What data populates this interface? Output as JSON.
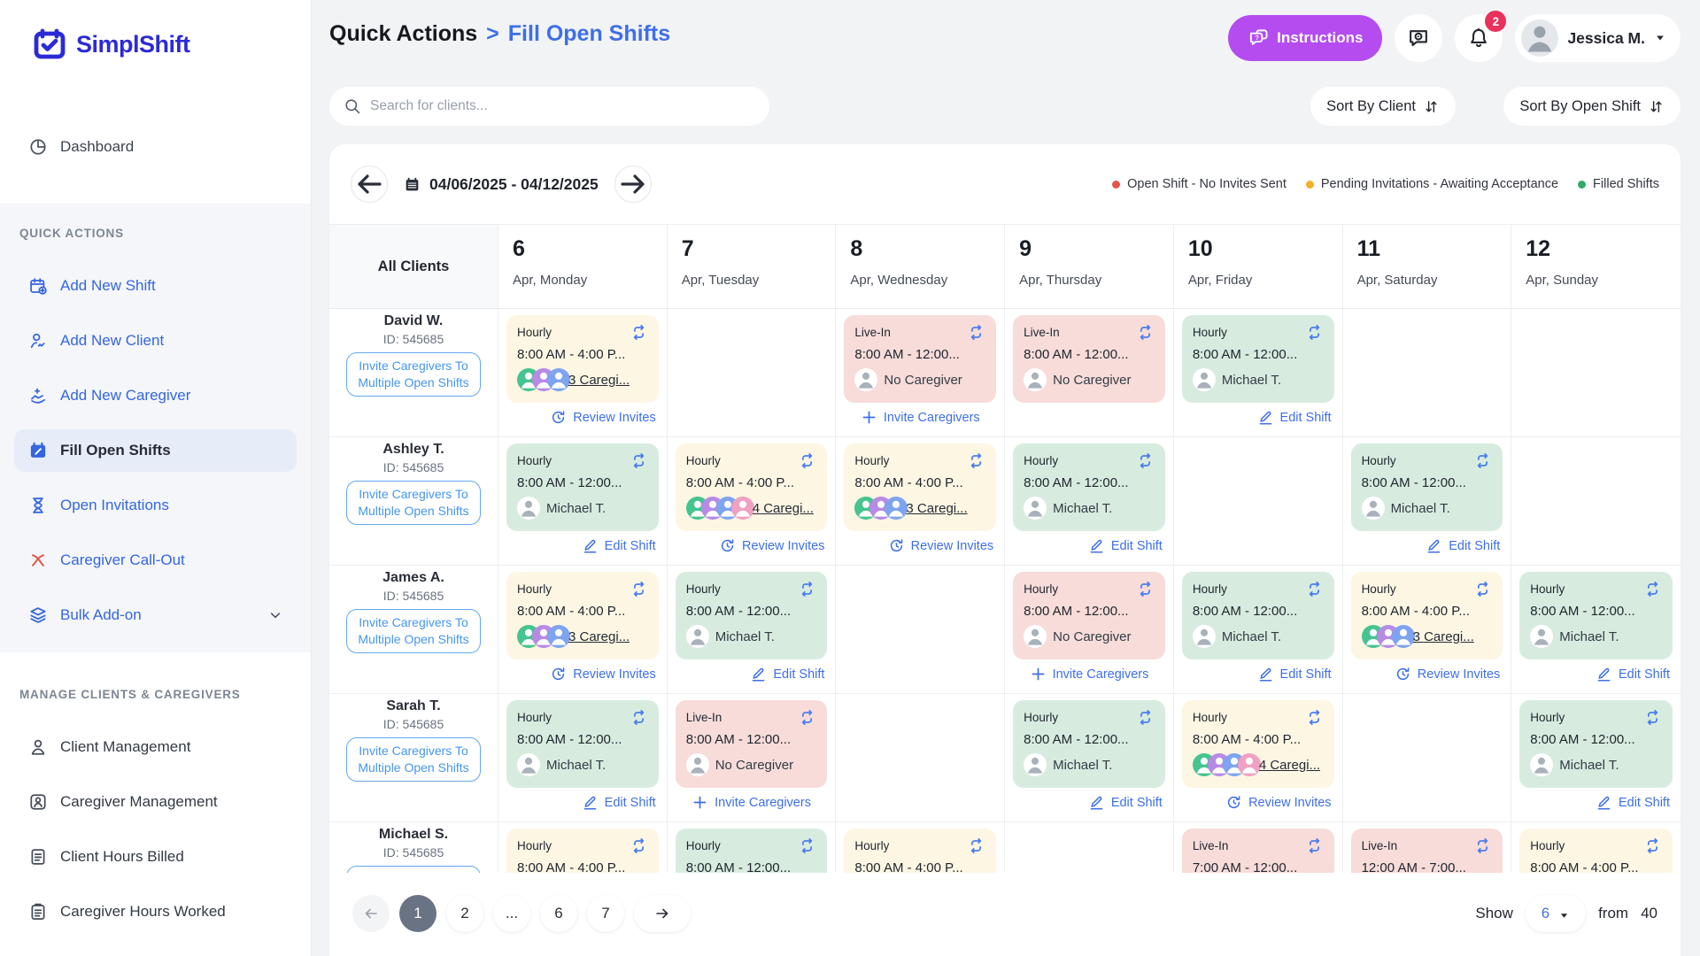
{
  "brand": {
    "name": "SimplShift"
  },
  "sidebar": {
    "dashboard": {
      "label": "Dashboard",
      "icon": "pie-chart-icon"
    },
    "quick_actions": {
      "title": "QUICK ACTIONS",
      "items": [
        {
          "label": "Add New Shift",
          "icon": "calendar-add-icon",
          "active": false
        },
        {
          "label": "Add New Client",
          "icon": "person-add-icon",
          "active": false
        },
        {
          "label": "Add New Caregiver",
          "icon": "hand-add-icon",
          "active": false
        },
        {
          "label": "Fill Open Shifts",
          "icon": "calendar-filled-icon",
          "active": true
        },
        {
          "label": "Open Invitations",
          "icon": "hourglass-icon",
          "active": false
        },
        {
          "label": "Caregiver Call-Out",
          "icon": "call-out-icon",
          "icon_color": "#e2574c",
          "active": false
        },
        {
          "label": "Bulk Add-on",
          "icon": "layers-icon",
          "chevron": true,
          "active": false
        }
      ]
    },
    "manage": {
      "title": "MANAGE CLIENTS & CAREGIVERS",
      "items": [
        {
          "label": "Client Management",
          "icon": "person-icon"
        },
        {
          "label": "Caregiver Management",
          "icon": "person-badge-icon"
        },
        {
          "label": "Client Hours Billed",
          "icon": "document-icon"
        },
        {
          "label": "Caregiver Hours Worked",
          "icon": "clipboard-icon"
        }
      ]
    }
  },
  "header": {
    "breadcrumb_parent": "Quick Actions",
    "breadcrumb_sep": ">",
    "breadcrumb_current": "Fill Open Shifts",
    "instructions_label": "Instructions",
    "notification_count": "2",
    "user_name": "Jessica M."
  },
  "toolbar": {
    "search_placeholder": "Search for clients...",
    "sort_by_client": "Sort By Client",
    "sort_by_open_shift": "Sort By Open Shift"
  },
  "week_bar": {
    "date_range": "04/06/2025 - 04/12/2025",
    "legend": [
      {
        "label": "Open Shift - No Invites Sent",
        "color": "#e2574c"
      },
      {
        "label": "Pending Invitations - Awaiting Acceptance",
        "color": "#f2b027"
      },
      {
        "label": "Filled Shifts",
        "color": "#2eab66"
      }
    ]
  },
  "calendar": {
    "corner_label": "All Clients",
    "days": [
      {
        "num": "6",
        "sub": "Apr, Monday"
      },
      {
        "num": "7",
        "sub": "Apr, Tuesday"
      },
      {
        "num": "8",
        "sub": "Apr, Wednesday"
      },
      {
        "num": "9",
        "sub": "Apr, Thursday"
      },
      {
        "num": "10",
        "sub": "Apr, Friday"
      },
      {
        "num": "11",
        "sub": "Apr, Saturday"
      },
      {
        "num": "12",
        "sub": "Apr, Sunday"
      }
    ],
    "actions": {
      "review": "Review Invites",
      "edit": "Edit Shift",
      "invite": "Invite Caregivers"
    },
    "invite_multiple_label": "Invite Caregivers To Multiple Open Shifts",
    "rows": [
      {
        "name": "David W.",
        "id": "ID: 545685",
        "cells": [
          {
            "status": "pending",
            "shift_type": "Hourly",
            "time": "8:00 AM - 4:00 P...",
            "caregiver": "3 Caregi...",
            "avatars": 3,
            "action": "review"
          },
          null,
          {
            "status": "open",
            "shift_type": "Live-In",
            "time": "8:00 AM - 12:00...",
            "caregiver": "No Caregiver",
            "avatars": 1,
            "action": "invite"
          },
          {
            "status": "open",
            "shift_type": "Live-In",
            "time": "8:00 AM - 12:00...",
            "caregiver": "No Caregiver",
            "avatars": 1,
            "action": null
          },
          {
            "status": "filled",
            "shift_type": "Hourly",
            "time": "8:00 AM - 12:00...",
            "caregiver": "Michael T.",
            "avatars": 1,
            "action": "edit"
          },
          null,
          null
        ]
      },
      {
        "name": "Ashley T.",
        "id": "ID: 545685",
        "cells": [
          {
            "status": "filled",
            "shift_type": "Hourly",
            "time": "8:00 AM - 12:00...",
            "caregiver": "Michael T.",
            "avatars": 1,
            "action": "edit"
          },
          {
            "status": "pending",
            "shift_type": "Hourly",
            "time": "8:00 AM - 4:00 P...",
            "caregiver": "4 Caregi...",
            "avatars": 4,
            "action": "review"
          },
          {
            "status": "pending",
            "shift_type": "Hourly",
            "time": "8:00 AM - 4:00 P...",
            "caregiver": "3 Caregi...",
            "avatars": 3,
            "action": "review"
          },
          {
            "status": "filled",
            "shift_type": "Hourly",
            "time": "8:00 AM - 12:00...",
            "caregiver": "Michael T.",
            "avatars": 1,
            "action": "edit"
          },
          null,
          {
            "status": "filled",
            "shift_type": "Hourly",
            "time": "8:00 AM - 12:00...",
            "caregiver": "Michael T.",
            "avatars": 1,
            "action": "edit"
          },
          null
        ]
      },
      {
        "name": "James A.",
        "id": "ID: 545685",
        "cells": [
          {
            "status": "pending",
            "shift_type": "Hourly",
            "time": "8:00 AM - 4:00 P...",
            "caregiver": "3 Caregi...",
            "avatars": 3,
            "action": "review"
          },
          {
            "status": "filled",
            "shift_type": "Hourly",
            "time": "8:00 AM - 12:00...",
            "caregiver": "Michael T.",
            "avatars": 1,
            "action": "edit"
          },
          null,
          {
            "status": "open",
            "shift_type": "Hourly",
            "time": "8:00 AM - 12:00...",
            "caregiver": "No Caregiver",
            "avatars": 1,
            "action": "invite"
          },
          {
            "status": "filled",
            "shift_type": "Hourly",
            "time": "8:00 AM - 12:00...",
            "caregiver": "Michael T.",
            "avatars": 1,
            "action": "edit"
          },
          {
            "status": "pending",
            "shift_type": "Hourly",
            "time": "8:00 AM - 4:00 P...",
            "caregiver": "3 Caregi...",
            "avatars": 3,
            "action": "review"
          },
          {
            "status": "filled",
            "shift_type": "Hourly",
            "time": "8:00 AM - 12:00...",
            "caregiver": "Michael T.",
            "avatars": 1,
            "action": "edit"
          }
        ]
      },
      {
        "name": "Sarah T.",
        "id": "ID: 545685",
        "cells": [
          {
            "status": "filled",
            "shift_type": "Hourly",
            "time": "8:00 AM - 12:00...",
            "caregiver": "Michael T.",
            "avatars": 1,
            "action": "edit"
          },
          {
            "status": "open",
            "shift_type": "Live-In",
            "time": "8:00 AM - 12:00...",
            "caregiver": "No Caregiver",
            "avatars": 1,
            "action": "invite"
          },
          null,
          {
            "status": "filled",
            "shift_type": "Hourly",
            "time": "8:00 AM - 12:00...",
            "caregiver": "Michael T.",
            "avatars": 1,
            "action": "edit"
          },
          {
            "status": "pending",
            "shift_type": "Hourly",
            "time": "8:00 AM - 4:00 P...",
            "caregiver": "4 Caregi...",
            "avatars": 4,
            "action": "review"
          },
          null,
          {
            "status": "filled",
            "shift_type": "Hourly",
            "time": "8:00 AM - 12:00...",
            "caregiver": "Michael T.",
            "avatars": 1,
            "action": "edit"
          }
        ]
      },
      {
        "name": "Michael S.",
        "id": "ID: 545685",
        "cells": [
          {
            "status": "pending",
            "shift_type": "Hourly",
            "time": "8:00 AM - 4:00 P...",
            "caregiver": null,
            "avatars": 0,
            "action": null
          },
          {
            "status": "filled",
            "shift_type": "Hourly",
            "time": "8:00 AM - 12:00...",
            "caregiver": null,
            "avatars": 0,
            "action": null
          },
          {
            "status": "pending",
            "shift_type": "Hourly",
            "time": "8:00 AM - 4:00 P...",
            "caregiver": null,
            "avatars": 0,
            "action": null
          },
          null,
          {
            "status": "open",
            "shift_type": "Live-In",
            "time": "7:00 AM - 12:00...",
            "caregiver": null,
            "avatars": 0,
            "action": null
          },
          {
            "status": "open",
            "shift_type": "Live-In",
            "time": "12:00 AM - 7:00...",
            "caregiver": null,
            "avatars": 0,
            "action": null
          },
          {
            "status": "pending",
            "shift_type": "Hourly",
            "time": "8:00 AM - 4:00 P...",
            "caregiver": null,
            "avatars": 0,
            "action": null
          }
        ]
      }
    ]
  },
  "pagination": {
    "pages": [
      "1",
      "2",
      "...",
      "6",
      "7"
    ],
    "active": "1",
    "show_label": "Show",
    "show_value": "6",
    "from_label": "from",
    "total": "40"
  },
  "colors": {
    "accent_blue": "#3d6fe8",
    "brand_indigo": "#2b2bd6",
    "instructions_purple": "#b44cf0",
    "badge_red": "#e8315b",
    "card_pending": "#fcf6e3",
    "card_open": "#f7dcd9",
    "card_filled": "#d7ecdf"
  }
}
